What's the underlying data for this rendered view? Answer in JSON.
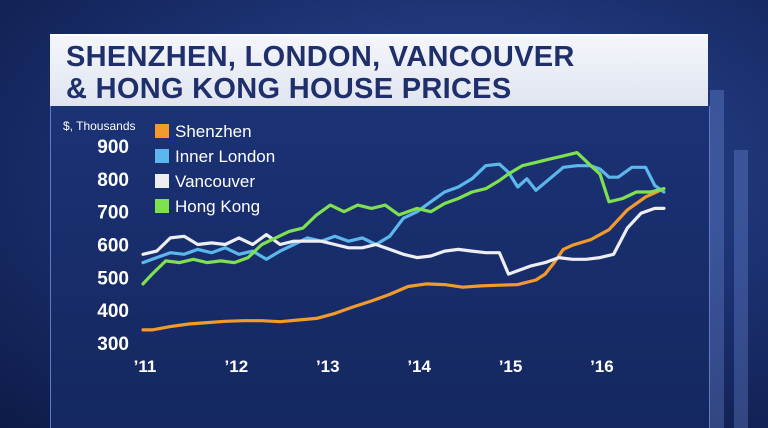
{
  "title": {
    "line1": "SHENZHEN, LONDON, VANCOUVER",
    "line2": "& HONG KONG HOUSE PRICES"
  },
  "chart_data": {
    "type": "line",
    "unit_label": "$, Thousands",
    "ylim": [
      300,
      900
    ],
    "yticks": [
      300,
      400,
      500,
      600,
      700,
      800,
      900
    ],
    "xlim": [
      2011.0,
      2016.8
    ],
    "xticks": [
      {
        "label": "’11",
        "value": 2011
      },
      {
        "label": "’12",
        "value": 2012
      },
      {
        "label": "’13",
        "value": 2013
      },
      {
        "label": "’14",
        "value": 2014
      },
      {
        "label": "’15",
        "value": 2015
      },
      {
        "label": "’16",
        "value": 2016
      }
    ],
    "grid": false,
    "legend_position": "top-left",
    "series": [
      {
        "name": "Shenzhen",
        "color": "#f39a2d",
        "x": [
          2011.0,
          2011.1,
          2011.3,
          2011.5,
          2011.7,
          2011.9,
          2012.1,
          2012.3,
          2012.5,
          2012.7,
          2012.9,
          2013.1,
          2013.3,
          2013.5,
          2013.7,
          2013.9,
          2014.1,
          2014.3,
          2014.5,
          2014.7,
          2014.9,
          2015.1,
          2015.3,
          2015.4,
          2015.5,
          2015.6,
          2015.7,
          2015.9,
          2016.1,
          2016.3,
          2016.5,
          2016.7
        ],
        "y": [
          340,
          340,
          350,
          358,
          362,
          366,
          368,
          368,
          365,
          370,
          375,
          390,
          410,
          428,
          448,
          472,
          480,
          478,
          470,
          474,
          476,
          478,
          492,
          510,
          545,
          585,
          598,
          615,
          645,
          705,
          745,
          770
        ]
      },
      {
        "name": "Inner London",
        "color": "#5cb8ec",
        "x": [
          2011.0,
          2011.15,
          2011.3,
          2011.45,
          2011.6,
          2011.75,
          2011.9,
          2012.05,
          2012.2,
          2012.35,
          2012.5,
          2012.65,
          2012.8,
          2012.95,
          2013.1,
          2013.25,
          2013.4,
          2013.55,
          2013.7,
          2013.85,
          2014.0,
          2014.15,
          2014.3,
          2014.45,
          2014.6,
          2014.75,
          2014.9,
          2015.0,
          2015.1,
          2015.2,
          2015.3,
          2015.45,
          2015.6,
          2015.75,
          2015.9,
          2016.0,
          2016.1,
          2016.2,
          2016.35,
          2016.5,
          2016.6,
          2016.7
        ],
        "y": [
          545,
          560,
          575,
          570,
          585,
          575,
          590,
          570,
          580,
          555,
          580,
          600,
          620,
          610,
          625,
          610,
          620,
          600,
          625,
          680,
          700,
          730,
          760,
          775,
          800,
          840,
          845,
          820,
          775,
          800,
          765,
          800,
          835,
          840,
          840,
          830,
          805,
          805,
          835,
          835,
          780,
          760
        ]
      },
      {
        "name": "Vancouver",
        "color": "#eceef2",
        "x": [
          2011.0,
          2011.15,
          2011.3,
          2011.45,
          2011.6,
          2011.75,
          2011.9,
          2012.05,
          2012.2,
          2012.35,
          2012.5,
          2012.65,
          2012.8,
          2012.95,
          2013.1,
          2013.25,
          2013.4,
          2013.55,
          2013.7,
          2013.85,
          2014.0,
          2014.15,
          2014.3,
          2014.45,
          2014.6,
          2014.75,
          2014.9,
          2015.0,
          2015.1,
          2015.25,
          2015.4,
          2015.55,
          2015.7,
          2015.85,
          2016.0,
          2016.15,
          2016.3,
          2016.45,
          2016.6,
          2016.7
        ],
        "y": [
          570,
          580,
          620,
          625,
          600,
          605,
          600,
          620,
          600,
          630,
          600,
          610,
          610,
          610,
          600,
          590,
          590,
          600,
          585,
          570,
          560,
          565,
          580,
          585,
          580,
          575,
          575,
          510,
          520,
          535,
          545,
          560,
          555,
          555,
          560,
          570,
          650,
          695,
          710,
          710
        ]
      },
      {
        "name": "Hong Kong",
        "color": "#7fe050",
        "x": [
          2011.0,
          2011.1,
          2011.25,
          2011.4,
          2011.55,
          2011.7,
          2011.85,
          2012.0,
          2012.15,
          2012.3,
          2012.45,
          2012.6,
          2012.75,
          2012.9,
          2013.05,
          2013.2,
          2013.35,
          2013.5,
          2013.65,
          2013.8,
          2014.0,
          2014.15,
          2014.3,
          2014.45,
          2014.6,
          2014.75,
          2014.9,
          2015.0,
          2015.15,
          2015.3,
          2015.45,
          2015.6,
          2015.75,
          2015.9,
          2016.0,
          2016.1,
          2016.25,
          2016.4,
          2016.55,
          2016.7
        ],
        "y": [
          480,
          510,
          550,
          545,
          555,
          545,
          550,
          545,
          560,
          600,
          620,
          640,
          650,
          690,
          720,
          700,
          720,
          710,
          720,
          690,
          710,
          700,
          725,
          740,
          760,
          770,
          795,
          815,
          840,
          850,
          860,
          870,
          880,
          840,
          815,
          730,
          740,
          760,
          760,
          770
        ]
      }
    ]
  }
}
